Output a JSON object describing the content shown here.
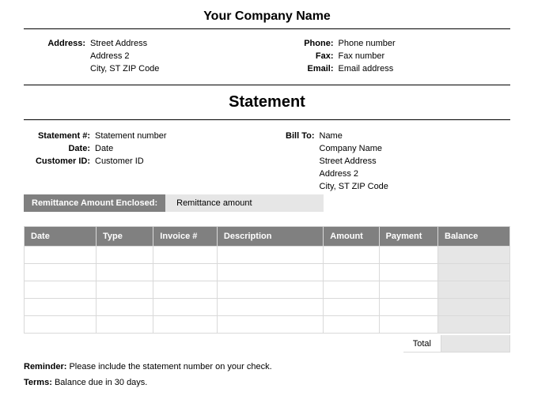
{
  "company_name": "Your Company Name",
  "header": {
    "address_label": "Address:",
    "address_line1": "Street Address",
    "address_line2": "Address 2",
    "address_line3": "City, ST  ZIP Code",
    "phone_label": "Phone:",
    "phone_value": "Phone number",
    "fax_label": "Fax:",
    "fax_value": "Fax number",
    "email_label": "Email:",
    "email_value": "Email address"
  },
  "statement_title": "Statement",
  "meta": {
    "statement_num_label": "Statement #:",
    "statement_num_value": "Statement number",
    "date_label": "Date:",
    "date_value": "Date",
    "customer_id_label": "Customer ID:",
    "customer_id_value": "Customer ID"
  },
  "billto": {
    "label": "Bill To:",
    "name": "Name",
    "company": "Company Name",
    "street": "Street Address",
    "address2": "Address 2",
    "city": "City, ST  ZIP Code"
  },
  "remittance": {
    "label": "Remittance Amount Enclosed:",
    "value": "Remittance amount"
  },
  "table": {
    "columns": [
      "Date",
      "Type",
      "Invoice #",
      "Description",
      "Amount",
      "Payment",
      "Balance"
    ],
    "col_widths": [
      "88px",
      "70px",
      "78px",
      "130px",
      "68px",
      "72px",
      "88px"
    ],
    "rows": [
      [
        "",
        "",
        "",
        "",
        "",
        "",
        ""
      ],
      [
        "",
        "",
        "",
        "",
        "",
        "",
        ""
      ],
      [
        "",
        "",
        "",
        "",
        "",
        "",
        ""
      ],
      [
        "",
        "",
        "",
        "",
        "",
        "",
        ""
      ],
      [
        "",
        "",
        "",
        "",
        "",
        "",
        ""
      ]
    ],
    "total_label": "Total",
    "total_value": ""
  },
  "footer": {
    "reminder_label": "Reminder:",
    "reminder_text": "Please include the statement number on your check.",
    "terms_label": "Terms:",
    "terms_text": "Balance due in 30 days."
  },
  "colors": {
    "header_bg": "#808080",
    "header_text": "#ffffff",
    "shade_bg": "#e6e6e6",
    "border": "#d9d9d9",
    "rule": "#000000"
  }
}
